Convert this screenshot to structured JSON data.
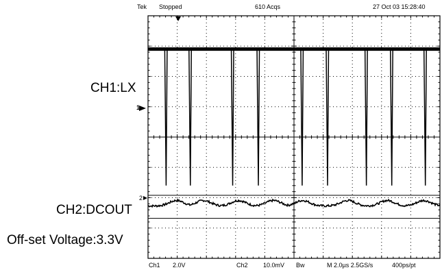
{
  "header": {
    "brand": "Tek",
    "status": "Stopped",
    "acqs": "610 Acqs",
    "datetime": "27 Oct 03 15:28:40"
  },
  "footer": {
    "ch1_label": "Ch1",
    "ch1_scale": "2.0V",
    "ch2_label": "Ch2",
    "ch2_scale": "10.0mV",
    "bw": "Bw",
    "timebase": "M 2.0µs 2.5GS/s",
    "resolution": "400ps/pt"
  },
  "labels": {
    "ch1": "CH1:LX",
    "ch2": "CH2:DCOUT",
    "offset": "Off-set Voltage:3.3V",
    "ch1_marker": "1",
    "ch2_marker": "2"
  },
  "chart_data": {
    "type": "line",
    "grid": true,
    "x_divisions": 10,
    "y_divisions": 8,
    "series": [
      {
        "channel": "CH1",
        "level_div": 2.9,
        "spike_low_div": -1.6,
        "spike_positions_div": [
          0.62,
          1.45,
          2.9,
          3.78,
          5.28,
          6.15,
          7.48,
          8.35,
          9.5
        ]
      },
      {
        "channel": "CH2",
        "baseline_div": -2.2,
        "ripple_amplitude_div": 0.18,
        "ripple_peaks_div": [
          0.98,
          1.9,
          3.1,
          4.3,
          5.3,
          6.85,
          8.2,
          9.45
        ]
      }
    ],
    "horizontal_lines_div": [
      -1.92,
      -2.68
    ]
  }
}
